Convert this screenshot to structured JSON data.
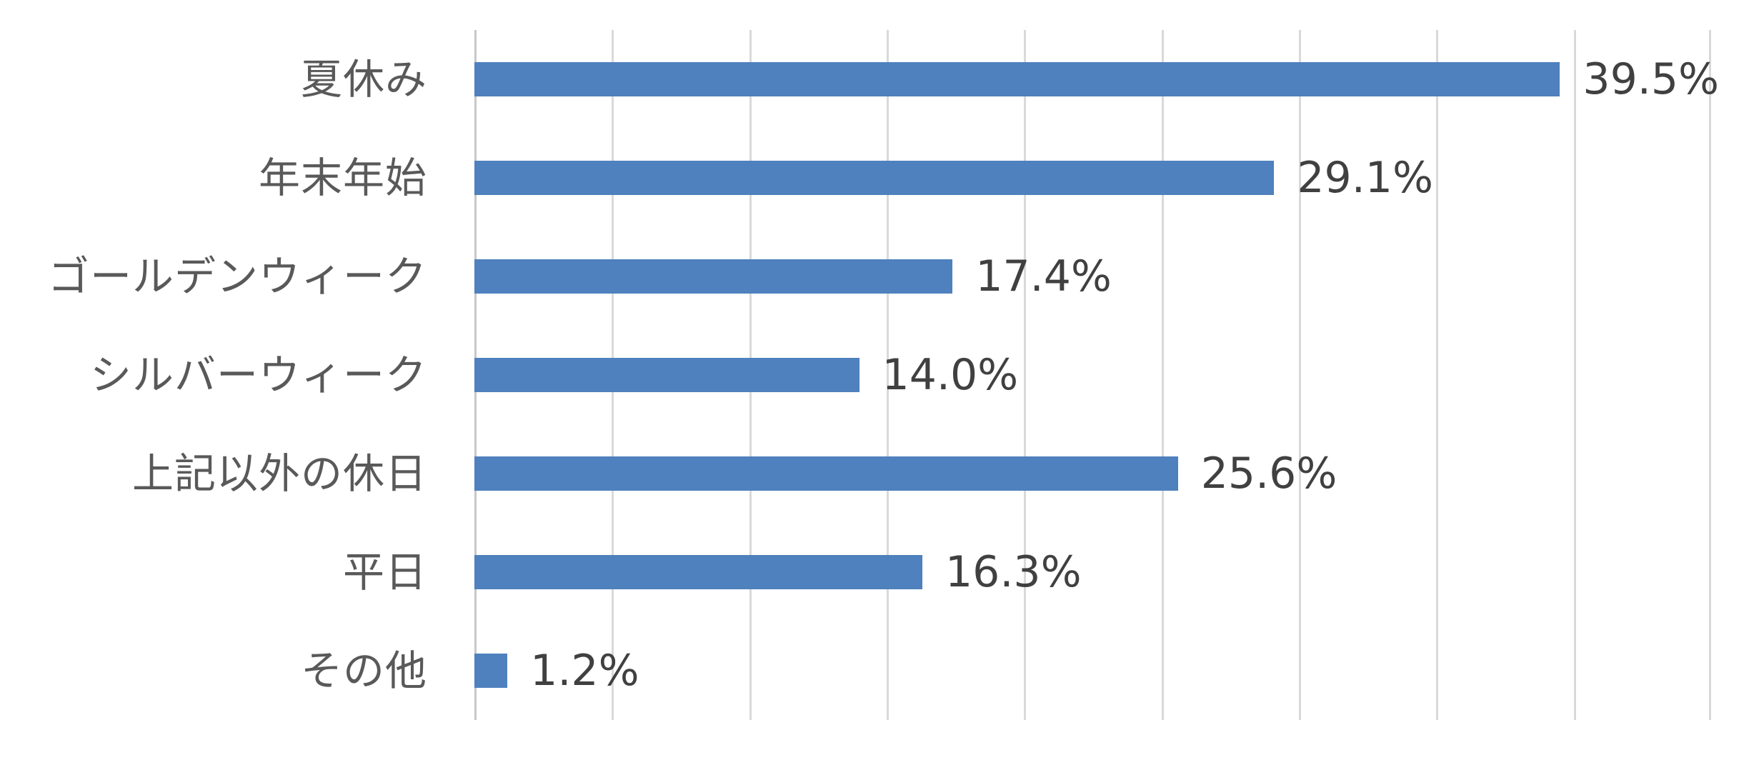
{
  "chart_data": {
    "type": "bar",
    "orientation": "horizontal",
    "title": "",
    "xlabel": "",
    "ylabel": "",
    "categories": [
      "夏休み",
      "年末年始",
      "ゴールデンウィーク",
      "シルバーウィーク",
      "上記以外の休日",
      "平日",
      "その他"
    ],
    "values": [
      39.5,
      29.1,
      17.4,
      14.0,
      25.6,
      16.3,
      1.2
    ],
    "value_labels": [
      "39.5%",
      "29.1%",
      "17.4%",
      "14.0%",
      "25.6%",
      "16.3%",
      "1.2%"
    ],
    "xlim": [
      0,
      45
    ],
    "gridline_interval": 5,
    "grid": true,
    "legend": false,
    "colors": {
      "bar": "#4E81BD",
      "gridline": "#D9D9D9",
      "axis_line": "#C8C8C8",
      "category_text": "#595959",
      "value_text": "#404040",
      "background": "#FFFFFF"
    }
  }
}
